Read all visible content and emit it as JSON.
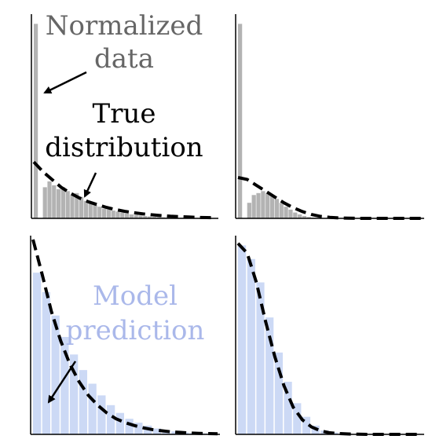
{
  "colors": {
    "normalized_data": "#b3b3b3",
    "model_prediction": "#ccd9f5",
    "true_distribution": "#000000",
    "normalized_label": "#666666",
    "true_label": "#000000",
    "model_label": "#aab8ea"
  },
  "annotations": {
    "normalized_data": [
      "Normalized",
      "data"
    ],
    "true_distribution": [
      "True",
      "distribution"
    ],
    "model_prediction": [
      "Model",
      "prediction"
    ]
  },
  "chart_data": [
    {
      "type": "bar",
      "panel": "top-left",
      "series_kind": "normalized-data",
      "bar_color": "#b3b3b3",
      "x": [
        0,
        1,
        2,
        3,
        4,
        5,
        6,
        7,
        8,
        9,
        10,
        11,
        12,
        13,
        14,
        15,
        16,
        17,
        18,
        19,
        20,
        21,
        22,
        23,
        24,
        25,
        26,
        27,
        28,
        29,
        30,
        31,
        32,
        33,
        34,
        35,
        36,
        37,
        38,
        39
      ],
      "values": [
        1.0,
        0.0,
        0.16,
        0.19,
        0.17,
        0.15,
        0.16,
        0.14,
        0.12,
        0.13,
        0.11,
        0.09,
        0.08,
        0.07,
        0.06,
        0.05,
        0.045,
        0.04,
        0.035,
        0.03,
        0.025,
        0.02,
        0.018,
        0.015,
        0.012,
        0.01,
        0.008,
        0.007,
        0.006,
        0.005,
        0.004,
        0.003,
        0.003,
        0.002,
        0.002,
        0.001,
        0.001,
        0.001,
        0.001,
        0.0
      ],
      "curve_x": [
        0,
        2,
        4,
        6,
        8,
        10,
        12,
        14,
        16,
        18,
        20,
        22,
        24,
        26,
        28,
        30,
        32,
        34,
        36,
        38,
        40
      ],
      "curve_y": [
        0.29,
        0.24,
        0.2,
        0.16,
        0.13,
        0.105,
        0.085,
        0.07,
        0.056,
        0.045,
        0.036,
        0.029,
        0.023,
        0.018,
        0.014,
        0.011,
        0.009,
        0.007,
        0.005,
        0.004,
        0.003
      ],
      "ylim": [
        0,
        1.05
      ]
    },
    {
      "type": "bar",
      "panel": "top-right",
      "series_kind": "normalized-data",
      "bar_color": "#b3b3b3",
      "x": [
        0,
        1,
        2,
        3,
        4,
        5,
        6,
        7,
        8,
        9,
        10,
        11,
        12,
        13,
        14,
        15,
        16,
        17,
        18,
        19,
        20,
        21,
        22,
        23,
        24,
        25,
        26,
        27,
        28,
        29,
        30,
        31,
        32,
        33,
        34,
        35,
        36,
        37,
        38,
        39
      ],
      "values": [
        1.0,
        0.0,
        0.08,
        0.12,
        0.13,
        0.14,
        0.13,
        0.12,
        0.1,
        0.08,
        0.06,
        0.045,
        0.03,
        0.02,
        0.012,
        0.007,
        0.004,
        0.002,
        0.001,
        0.0,
        0.0,
        0.0,
        0.0,
        0.0,
        0.0,
        0.0,
        0.0,
        0.0,
        0.0,
        0.0,
        0.0,
        0.0,
        0.0,
        0.0,
        0.0,
        0.0,
        0.0,
        0.0,
        0.0,
        0.0
      ],
      "curve_x": [
        0,
        2,
        4,
        6,
        8,
        10,
        12,
        14,
        16,
        18,
        20,
        22,
        24,
        26,
        28,
        30,
        32,
        34,
        36,
        38,
        40
      ],
      "curve_y": [
        0.21,
        0.2,
        0.17,
        0.14,
        0.11,
        0.08,
        0.055,
        0.035,
        0.02,
        0.01,
        0.005,
        0.002,
        0.001,
        0.0,
        0.0,
        0.0,
        0.0,
        0.0,
        0.0,
        0.0,
        0.0
      ],
      "ylim": [
        0,
        1.05
      ]
    },
    {
      "type": "bar",
      "panel": "bottom-left",
      "series_kind": "model-prediction",
      "bar_color": "#ccd9f5",
      "x": [
        0,
        1,
        2,
        3,
        4,
        5,
        6,
        7,
        8,
        9,
        10,
        11,
        12,
        13,
        14,
        15,
        16,
        17,
        18,
        19
      ],
      "values": [
        0.83,
        0.73,
        0.61,
        0.5,
        0.41,
        0.33,
        0.26,
        0.2,
        0.15,
        0.11,
        0.08,
        0.06,
        0.045,
        0.03,
        0.02,
        0.015,
        0.01,
        0.007,
        0.005,
        0.003
      ],
      "curve_x": [
        0,
        1,
        2,
        3,
        4,
        5,
        6,
        7,
        8,
        9,
        10,
        11,
        12,
        13,
        14,
        15,
        16,
        17,
        18,
        19,
        20
      ],
      "curve_y": [
        1.0,
        0.82,
        0.63,
        0.48,
        0.36,
        0.27,
        0.2,
        0.15,
        0.11,
        0.08,
        0.06,
        0.045,
        0.033,
        0.024,
        0.018,
        0.013,
        0.01,
        0.007,
        0.005,
        0.004,
        0.003
      ],
      "ylim": [
        0,
        1.02
      ]
    },
    {
      "type": "bar",
      "panel": "bottom-right",
      "series_kind": "model-prediction",
      "bar_color": "#ccd9f5",
      "x": [
        0,
        1,
        2,
        3,
        4,
        5,
        6,
        7,
        8,
        9,
        10,
        11,
        12,
        13,
        14,
        15,
        16,
        17,
        18,
        19
      ],
      "values": [
        0.97,
        0.9,
        0.78,
        0.6,
        0.42,
        0.27,
        0.16,
        0.09,
        0.045,
        0.02,
        0.01,
        0.005,
        0.002,
        0.001,
        0.0,
        0.0,
        0.0,
        0.0,
        0.0,
        0.0
      ],
      "curve_x": [
        0,
        1,
        2,
        3,
        4,
        5,
        6,
        7,
        8,
        9,
        10,
        11,
        12,
        13,
        14,
        15,
        16,
        17,
        18,
        19,
        20
      ],
      "curve_y": [
        0.98,
        0.93,
        0.78,
        0.58,
        0.4,
        0.25,
        0.14,
        0.075,
        0.038,
        0.018,
        0.008,
        0.004,
        0.002,
        0.001,
        0.0,
        0.0,
        0.0,
        0.0,
        0.0,
        0.0,
        0.0
      ],
      "ylim": [
        0,
        1.02
      ]
    }
  ]
}
